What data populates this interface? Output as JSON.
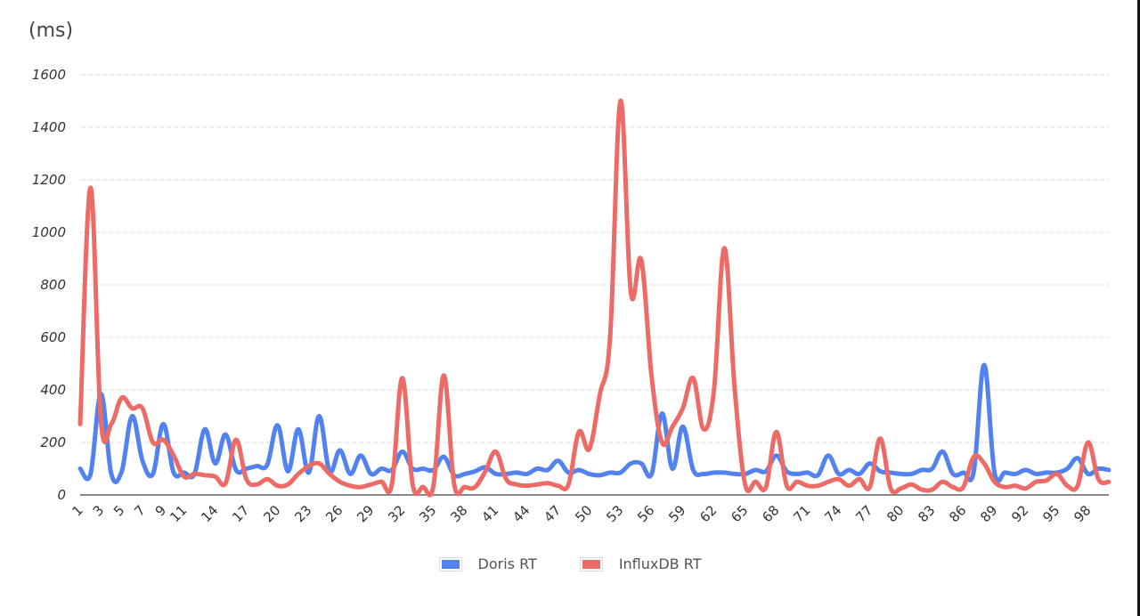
{
  "chart_data": {
    "type": "line",
    "title": "",
    "ylabel": "(ms)",
    "xlabel": "",
    "ylim": [
      0,
      1600
    ],
    "yticks": [
      0,
      200,
      400,
      600,
      800,
      1000,
      1200,
      1400,
      1600
    ],
    "grid": true,
    "legend_position": "bottom",
    "x": [
      1,
      2,
      3,
      4,
      5,
      6,
      7,
      8,
      9,
      10,
      11,
      12,
      13,
      14,
      15,
      16,
      17,
      18,
      19,
      20,
      21,
      22,
      23,
      24,
      25,
      26,
      27,
      28,
      29,
      30,
      31,
      32,
      33,
      34,
      35,
      36,
      37,
      38,
      39,
      40,
      41,
      42,
      43,
      44,
      45,
      46,
      47,
      48,
      49,
      50,
      51,
      52,
      53,
      54,
      55,
      56,
      57,
      58,
      59,
      60,
      61,
      62,
      63,
      64,
      65,
      66,
      67,
      68,
      69,
      70,
      71,
      72,
      73,
      74,
      75,
      76,
      77,
      78,
      79,
      80,
      81,
      82,
      83,
      84,
      85,
      86,
      87,
      88,
      89,
      90,
      91,
      92,
      93,
      94,
      95,
      96,
      97,
      98,
      99,
      100
    ],
    "xtick_labels": [
      "1",
      "3",
      "5",
      "7",
      "9",
      "11",
      "14",
      "17",
      "20",
      "23",
      "26",
      "29",
      "32",
      "35",
      "38",
      "41",
      "44",
      "47",
      "50",
      "53",
      "56",
      "59",
      "62",
      "65",
      "68",
      "71",
      "74",
      "77",
      "80",
      "83",
      "86",
      "89",
      "92",
      "95",
      "98"
    ],
    "series": [
      {
        "name": "Doris RT",
        "color": "#5182F0",
        "values": [
          100,
          80,
          385,
          80,
          90,
          300,
          130,
          80,
          270,
          85,
          85,
          80,
          250,
          120,
          230,
          95,
          100,
          110,
          115,
          265,
          90,
          250,
          85,
          300,
          90,
          170,
          80,
          150,
          80,
          100,
          95,
          165,
          100,
          100,
          95,
          145,
          75,
          80,
          90,
          105,
          80,
          80,
          85,
          80,
          100,
          95,
          130,
          85,
          95,
          80,
          75,
          85,
          85,
          120,
          120,
          80,
          310,
          100,
          260,
          95,
          80,
          85,
          85,
          80,
          80,
          95,
          90,
          150,
          90,
          80,
          85,
          75,
          150,
          80,
          95,
          80,
          120,
          90,
          85,
          80,
          80,
          95,
          100,
          165,
          80,
          85,
          90,
          495,
          85,
          85,
          80,
          95,
          80,
          85,
          85,
          100,
          140,
          80,
          100,
          95
        ]
      },
      {
        "name": "InfluxDB RT",
        "color": "#EC6B66",
        "values": [
          270,
          1170,
          280,
          270,
          370,
          330,
          330,
          200,
          210,
          150,
          70,
          80,
          75,
          70,
          45,
          210,
          60,
          40,
          60,
          35,
          40,
          80,
          110,
          120,
          80,
          50,
          35,
          30,
          40,
          50,
          40,
          445,
          40,
          30,
          35,
          455,
          40,
          30,
          30,
          90,
          165,
          60,
          40,
          35,
          40,
          45,
          35,
          40,
          240,
          175,
          380,
          600,
          1500,
          770,
          895,
          450,
          200,
          260,
          330,
          445,
          250,
          400,
          940,
          400,
          40,
          50,
          30,
          240,
          35,
          50,
          35,
          35,
          50,
          60,
          35,
          60,
          30,
          215,
          25,
          25,
          40,
          20,
          20,
          50,
          30,
          30,
          145,
          120,
          50,
          30,
          35,
          25,
          50,
          55,
          80,
          35,
          35,
          200,
          60,
          50
        ]
      }
    ]
  },
  "axis": {
    "unit_label": "(ms)"
  },
  "legend": {
    "items": [
      {
        "label": "Doris RT",
        "color": "#5182F0"
      },
      {
        "label": "InfluxDB RT",
        "color": "#EC6B66"
      }
    ]
  }
}
